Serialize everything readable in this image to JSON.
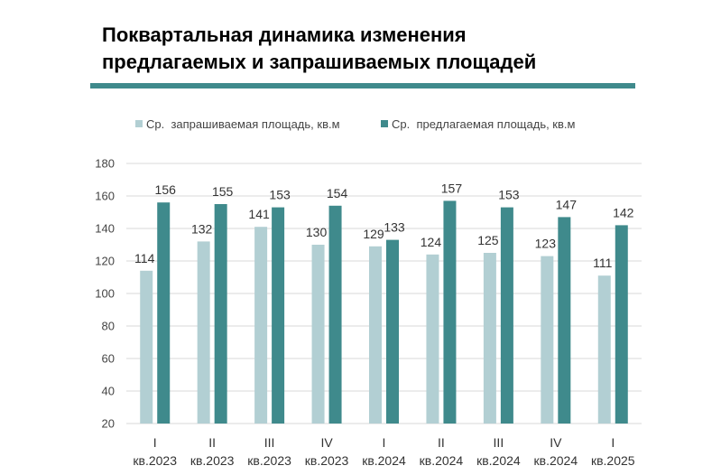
{
  "header": {
    "title_line1": "Поквартальная динамика изменения",
    "title_line2": "предлагаемых и запрашиваемых площадей"
  },
  "colors": {
    "rule": "#3f8a8c",
    "requested": "#b2cfd3",
    "offered": "#3f8a8c",
    "grid": "#d9d9d9"
  },
  "chart_data": {
    "type": "bar",
    "title": "",
    "xlabel": "",
    "ylabel": "",
    "ylim": [
      20,
      180
    ],
    "yticks": [
      20,
      40,
      60,
      80,
      100,
      120,
      140,
      160,
      180
    ],
    "grid": true,
    "legend_position": "top",
    "categories": [
      [
        "I",
        "кв.2023"
      ],
      [
        "II",
        "кв.2023"
      ],
      [
        "III",
        "кв.2023"
      ],
      [
        "IV",
        "кв.2023"
      ],
      [
        "I",
        "кв.2024"
      ],
      [
        "II",
        "кв.2024"
      ],
      [
        "III",
        "кв.2024"
      ],
      [
        "IV",
        "кв.2024"
      ],
      [
        "I",
        "кв.2025"
      ]
    ],
    "series": [
      {
        "name": "Ср.  запрашиваемая площадь, кв.м",
        "values": [
          114,
          132,
          141,
          130,
          129,
          124,
          125,
          123,
          111
        ]
      },
      {
        "name": "Ср.  предлагаемая площадь, кв.м",
        "values": [
          156,
          155,
          153,
          154,
          133,
          157,
          153,
          147,
          142
        ]
      }
    ]
  }
}
